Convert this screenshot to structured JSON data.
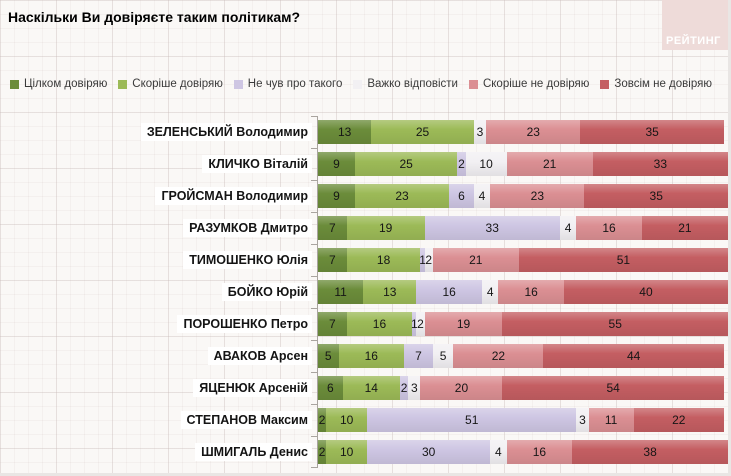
{
  "page": {
    "title": "Наскільки Ви довіряєте таким політикам?",
    "logo_text": "РЕЙТИНГ",
    "logo_color": "#eedbd9",
    "background_color": "#faf8f6",
    "axis_color": "#a9a49f"
  },
  "legend": [
    {
      "label": "Цілком довіряю",
      "color": "#6b8c3a"
    },
    {
      "label": "Скоріше довіряю",
      "color": "#9cba57"
    },
    {
      "label": "Не чув про такого",
      "color": "#cec6e3"
    },
    {
      "label": "Важко відповісти",
      "color": "#f2f0f3"
    },
    {
      "label": "Скоріше не довіряю",
      "color": "#db8f93"
    },
    {
      "label": "Зовсім не довіряю",
      "color": "#c45e62"
    }
  ],
  "chart_data": {
    "type": "bar",
    "stacked": true,
    "orientation": "horizontal",
    "unit": "percent",
    "title": "Наскільки Ви довіряєте таким політикам?",
    "xlim": [
      0,
      100
    ],
    "legend_position": "top",
    "grid": false,
    "categories": [
      "ЗЕЛЕНСЬКИЙ Володимир",
      "КЛИЧКО Віталій",
      "ГРОЙСМАН Володимир",
      "РАЗУМКОВ Дмитро",
      "ТИМОШЕНКО Юлія",
      "БОЙКО Юрій",
      "ПОРОШЕНКО Петро",
      "АВАКОВ Арсен",
      "ЯЦЕНЮК Арсеній",
      "СТЕПАНОВ Максим",
      "ШМИГАЛЬ Денис"
    ],
    "series": [
      {
        "name": "Цілком довіряю",
        "color": "#6b8c3a",
        "values": [
          13,
          9,
          9,
          7,
          7,
          11,
          7,
          5,
          6,
          2,
          2
        ]
      },
      {
        "name": "Скоріше довіряю",
        "color": "#9cba57",
        "values": [
          25,
          25,
          23,
          19,
          18,
          13,
          16,
          16,
          14,
          10,
          10
        ]
      },
      {
        "name": "Не чув про такого",
        "color": "#cec6e3",
        "values": [
          0,
          2,
          6,
          33,
          1,
          16,
          1,
          7,
          2,
          51,
          30
        ]
      },
      {
        "name": "Важко відповісти",
        "color": "#f2f0f3",
        "values": [
          3,
          10,
          4,
          4,
          2,
          4,
          2,
          5,
          3,
          3,
          4
        ]
      },
      {
        "name": "Скоріше не довіряю",
        "color": "#db8f93",
        "values": [
          23,
          21,
          23,
          16,
          21,
          16,
          19,
          22,
          20,
          11,
          16
        ]
      },
      {
        "name": "Зовсім не довіряю",
        "color": "#c45e62",
        "values": [
          35,
          33,
          35,
          21,
          51,
          40,
          55,
          44,
          54,
          22,
          38
        ]
      }
    ]
  }
}
